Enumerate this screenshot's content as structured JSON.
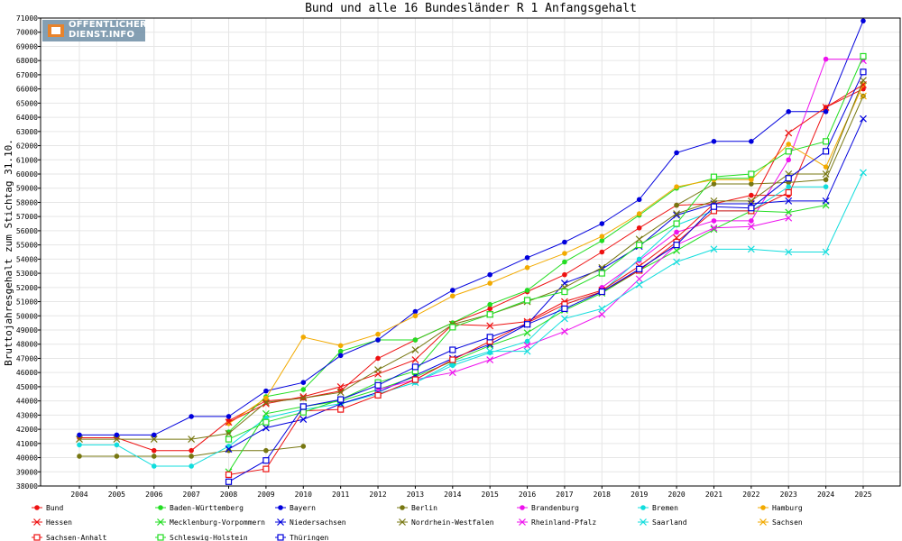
{
  "logo": {
    "line1": "ÖFFENTLICHER",
    "line2": "DIENST.INFO"
  },
  "chart_data": {
    "type": "line",
    "title": "Bund und alle 16 Bundesländer R 1 Anfangsgehalt",
    "xlabel": "",
    "ylabel": "Bruttojahresgehalt zum Stichtag 31.10.",
    "x": [
      "2004",
      "2005",
      "2006",
      "2007",
      "2008",
      "2009",
      "2010",
      "2011",
      "2012",
      "2013",
      "2014",
      "2015",
      "2016",
      "2017",
      "2018",
      "2019",
      "2020",
      "2021",
      "2022",
      "2023",
      "2024",
      "2025"
    ],
    "ylim": [
      38000,
      71000
    ],
    "ytick_step": 1000,
    "grid": true,
    "legend_position": "bottom",
    "series": [
      {
        "name": "Bund",
        "color": "#ee1111",
        "marker": "dot",
        "values": [
          41400,
          41400,
          40500,
          40500,
          42600,
          44000,
          44200,
          44700,
          47000,
          48300,
          49500,
          50500,
          51700,
          52900,
          54500,
          56200,
          57800,
          57900,
          58500,
          58500,
          64700,
          66000
        ]
      },
      {
        "name": "Baden-Württemberg",
        "color": "#22dd22",
        "marker": "dot",
        "values": [
          null,
          null,
          null,
          null,
          41800,
          44300,
          44800,
          47500,
          48300,
          48300,
          49500,
          50800,
          51800,
          53800,
          55300,
          57100,
          59000,
          59700,
          59700,
          null,
          null,
          null
        ]
      },
      {
        "name": "Bayern",
        "color": "#0000dd",
        "marker": "dot",
        "values": [
          41600,
          41600,
          41600,
          42900,
          42900,
          44700,
          45300,
          47200,
          48300,
          50300,
          51800,
          52900,
          54100,
          55200,
          56500,
          58200,
          61500,
          62300,
          62300,
          64400,
          64400,
          70800
        ]
      },
      {
        "name": "Berlin",
        "color": "#777711",
        "marker": "dot",
        "values": [
          40100,
          40100,
          40100,
          40100,
          40500,
          40500,
          40800,
          null,
          null,
          null,
          null,
          null,
          null,
          null,
          null,
          null,
          57800,
          59300,
          59300,
          59400,
          59600,
          65500
        ]
      },
      {
        "name": "Brandenburg",
        "color": "#ee11ee",
        "marker": "dot",
        "values": [
          null,
          null,
          null,
          null,
          null,
          null,
          null,
          null,
          null,
          null,
          null,
          null,
          null,
          null,
          52000,
          53900,
          55900,
          56700,
          56700,
          61000,
          68100,
          68100
        ]
      },
      {
        "name": "Bremen",
        "color": "#11dddd",
        "marker": "dot",
        "values": [
          40900,
          40900,
          39400,
          39400,
          40800,
          42800,
          43400,
          43800,
          44500,
          45300,
          46500,
          47400,
          48200,
          50800,
          51700,
          54000,
          56400,
          57400,
          57400,
          59100,
          59100,
          null
        ]
      },
      {
        "name": "Hamburg",
        "color": "#f2aa00",
        "marker": "dot",
        "values": [
          null,
          null,
          null,
          null,
          42400,
          44200,
          48500,
          47900,
          48700,
          50000,
          51400,
          52300,
          53400,
          54400,
          55600,
          57200,
          59100,
          59600,
          59600,
          62100,
          60500,
          66300
        ]
      },
      {
        "name": "Hessen",
        "color": "#ee1111",
        "marker": "x",
        "values": [
          null,
          null,
          null,
          null,
          42500,
          43800,
          44300,
          45000,
          45900,
          46900,
          49400,
          49300,
          49600,
          51000,
          51800,
          53500,
          55500,
          57900,
          57900,
          62900,
          64700,
          66300
        ]
      },
      {
        "name": "Mecklenburg-Vorpommern",
        "color": "#22dd22",
        "marker": "x",
        "values": [
          null,
          null,
          null,
          null,
          39000,
          43100,
          43600,
          44000,
          44800,
          45700,
          46800,
          47900,
          48800,
          50400,
          51600,
          53200,
          54600,
          56100,
          57400,
          57300,
          57800,
          null
        ]
      },
      {
        "name": "Niedersachsen",
        "color": "#0000dd",
        "marker": "x",
        "values": [
          null,
          null,
          null,
          null,
          40600,
          42100,
          42700,
          43800,
          44600,
          45800,
          47000,
          48000,
          49400,
          52300,
          53300,
          54900,
          57100,
          57900,
          57900,
          58100,
          58100,
          63900
        ]
      },
      {
        "name": "Nordrhein-Westfalen",
        "color": "#777711",
        "marker": "x",
        "values": [
          41300,
          41300,
          41300,
          41300,
          41700,
          43900,
          44200,
          44600,
          46200,
          47600,
          49400,
          50100,
          51000,
          52000,
          53400,
          55400,
          57200,
          58100,
          58100,
          60000,
          60000,
          66600
        ]
      },
      {
        "name": "Rheinland-Pfalz",
        "color": "#ee11ee",
        "marker": "x",
        "values": [
          null,
          null,
          null,
          null,
          null,
          null,
          null,
          null,
          44800,
          45500,
          46000,
          46900,
          47900,
          48900,
          50100,
          52600,
          55000,
          56200,
          56300,
          56900,
          null,
          68000
        ]
      },
      {
        "name": "Saarland",
        "color": "#11dddd",
        "marker": "x",
        "values": [
          null,
          null,
          null,
          null,
          null,
          null,
          null,
          null,
          44500,
          45300,
          46700,
          47500,
          47500,
          49800,
          50500,
          52200,
          53800,
          54700,
          54700,
          54500,
          54500,
          60100
        ]
      },
      {
        "name": "Sachsen",
        "color": "#f2aa00",
        "marker": "x",
        "values": [
          null,
          null,
          null,
          null,
          null,
          null,
          null,
          null,
          null,
          null,
          null,
          null,
          null,
          null,
          null,
          null,
          null,
          null,
          null,
          null,
          null,
          65500
        ]
      },
      {
        "name": "Sachsen-Anhalt",
        "color": "#ee1111",
        "marker": "square",
        "values": [
          null,
          null,
          null,
          null,
          38800,
          39200,
          43300,
          43400,
          44400,
          45500,
          46900,
          48200,
          49500,
          50800,
          51700,
          53200,
          55200,
          57400,
          57400,
          58700,
          null,
          null
        ]
      },
      {
        "name": "Schleswig-Holstein",
        "color": "#22dd22",
        "marker": "square",
        "values": [
          null,
          null,
          null,
          null,
          41300,
          42500,
          43200,
          44100,
          45300,
          46100,
          49200,
          50100,
          51100,
          51700,
          53000,
          55000,
          56500,
          59800,
          60000,
          61600,
          62300,
          68300
        ]
      },
      {
        "name": "Thüringen",
        "color": "#0000dd",
        "marker": "square",
        "values": [
          null,
          null,
          null,
          null,
          38300,
          39800,
          43600,
          44100,
          45100,
          46400,
          47600,
          48500,
          49400,
          50500,
          51700,
          53300,
          55000,
          57700,
          57600,
          59700,
          61600,
          67200
        ]
      }
    ]
  }
}
